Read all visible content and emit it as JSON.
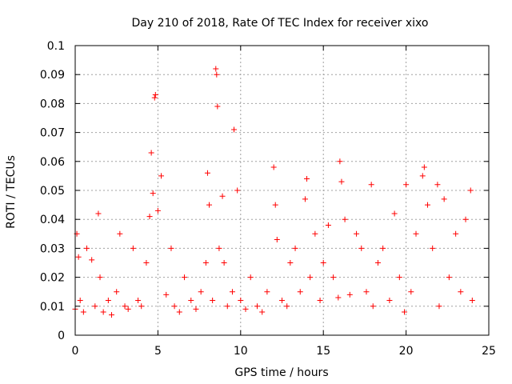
{
  "chart_data": {
    "type": "scatter",
    "title": "Day 210 of 2018, Rate Of TEC Index for receiver xixo",
    "xlabel": "GPS time / hours",
    "ylabel": "ROTI / TECUs",
    "xlim": [
      0,
      25
    ],
    "ylim": [
      0,
      0.1
    ],
    "xticks": [
      0,
      5,
      10,
      15,
      20,
      25
    ],
    "xtick_labels": [
      "0",
      "5",
      "10",
      "15",
      "20",
      "25"
    ],
    "yticks": [
      0,
      0.01,
      0.02,
      0.03,
      0.04,
      0.05,
      0.06,
      0.07,
      0.08,
      0.09,
      0.1
    ],
    "ytick_labels": [
      "0",
      "0.01",
      "0.02",
      "0.03",
      "0.04",
      "0.05",
      "0.06",
      "0.07",
      "0.08",
      "0.09",
      "0.1"
    ],
    "grid": true,
    "marker": "+",
    "marker_color": "#ff0000",
    "series": [
      {
        "name": "ROTI",
        "x": [
          0.0,
          0.1,
          0.2,
          0.3,
          0.5,
          0.7,
          1.0,
          1.2,
          1.4,
          1.5,
          1.7,
          2.0,
          2.2,
          2.5,
          2.7,
          3.0,
          3.2,
          3.5,
          3.8,
          4.0,
          4.3,
          4.5,
          4.6,
          4.7,
          4.8,
          4.85,
          5.0,
          5.2,
          5.5,
          5.8,
          6.0,
          6.3,
          6.6,
          7.0,
          7.3,
          7.6,
          7.9,
          8.0,
          8.1,
          8.3,
          8.5,
          8.55,
          8.6,
          8.7,
          8.9,
          9.0,
          9.2,
          9.5,
          9.6,
          9.8,
          10.0,
          10.3,
          10.6,
          11.0,
          11.3,
          11.6,
          12.0,
          12.1,
          12.2,
          12.5,
          12.8,
          13.0,
          13.3,
          13.6,
          13.9,
          14.0,
          14.2,
          14.5,
          14.8,
          15.0,
          15.3,
          15.6,
          15.9,
          16.0,
          16.1,
          16.3,
          16.6,
          17.0,
          17.3,
          17.6,
          17.9,
          18.0,
          18.3,
          18.6,
          19.0,
          19.3,
          19.6,
          19.9,
          20.0,
          20.3,
          20.6,
          21.0,
          21.1,
          21.3,
          21.6,
          21.9,
          22.0,
          22.3,
          22.6,
          23.0,
          23.3,
          23.6,
          23.9,
          24.0
        ],
        "values": [
          0.009,
          0.035,
          0.027,
          0.012,
          0.008,
          0.03,
          0.026,
          0.01,
          0.042,
          0.02,
          0.008,
          0.012,
          0.007,
          0.015,
          0.035,
          0.01,
          0.009,
          0.03,
          0.012,
          0.01,
          0.025,
          0.041,
          0.063,
          0.049,
          0.082,
          0.083,
          0.043,
          0.055,
          0.014,
          0.03,
          0.01,
          0.008,
          0.02,
          0.012,
          0.009,
          0.015,
          0.025,
          0.056,
          0.045,
          0.012,
          0.092,
          0.09,
          0.079,
          0.03,
          0.048,
          0.025,
          0.01,
          0.015,
          0.071,
          0.05,
          0.012,
          0.009,
          0.02,
          0.01,
          0.008,
          0.015,
          0.058,
          0.045,
          0.033,
          0.012,
          0.01,
          0.025,
          0.03,
          0.015,
          0.047,
          0.054,
          0.02,
          0.035,
          0.012,
          0.025,
          0.038,
          0.02,
          0.013,
          0.06,
          0.053,
          0.04,
          0.014,
          0.035,
          0.03,
          0.015,
          0.052,
          0.01,
          0.025,
          0.03,
          0.012,
          0.042,
          0.02,
          0.008,
          0.052,
          0.015,
          0.035,
          0.055,
          0.058,
          0.045,
          0.03,
          0.052,
          0.01,
          0.047,
          0.02,
          0.035,
          0.015,
          0.04,
          0.05,
          0.012
        ]
      }
    ]
  }
}
